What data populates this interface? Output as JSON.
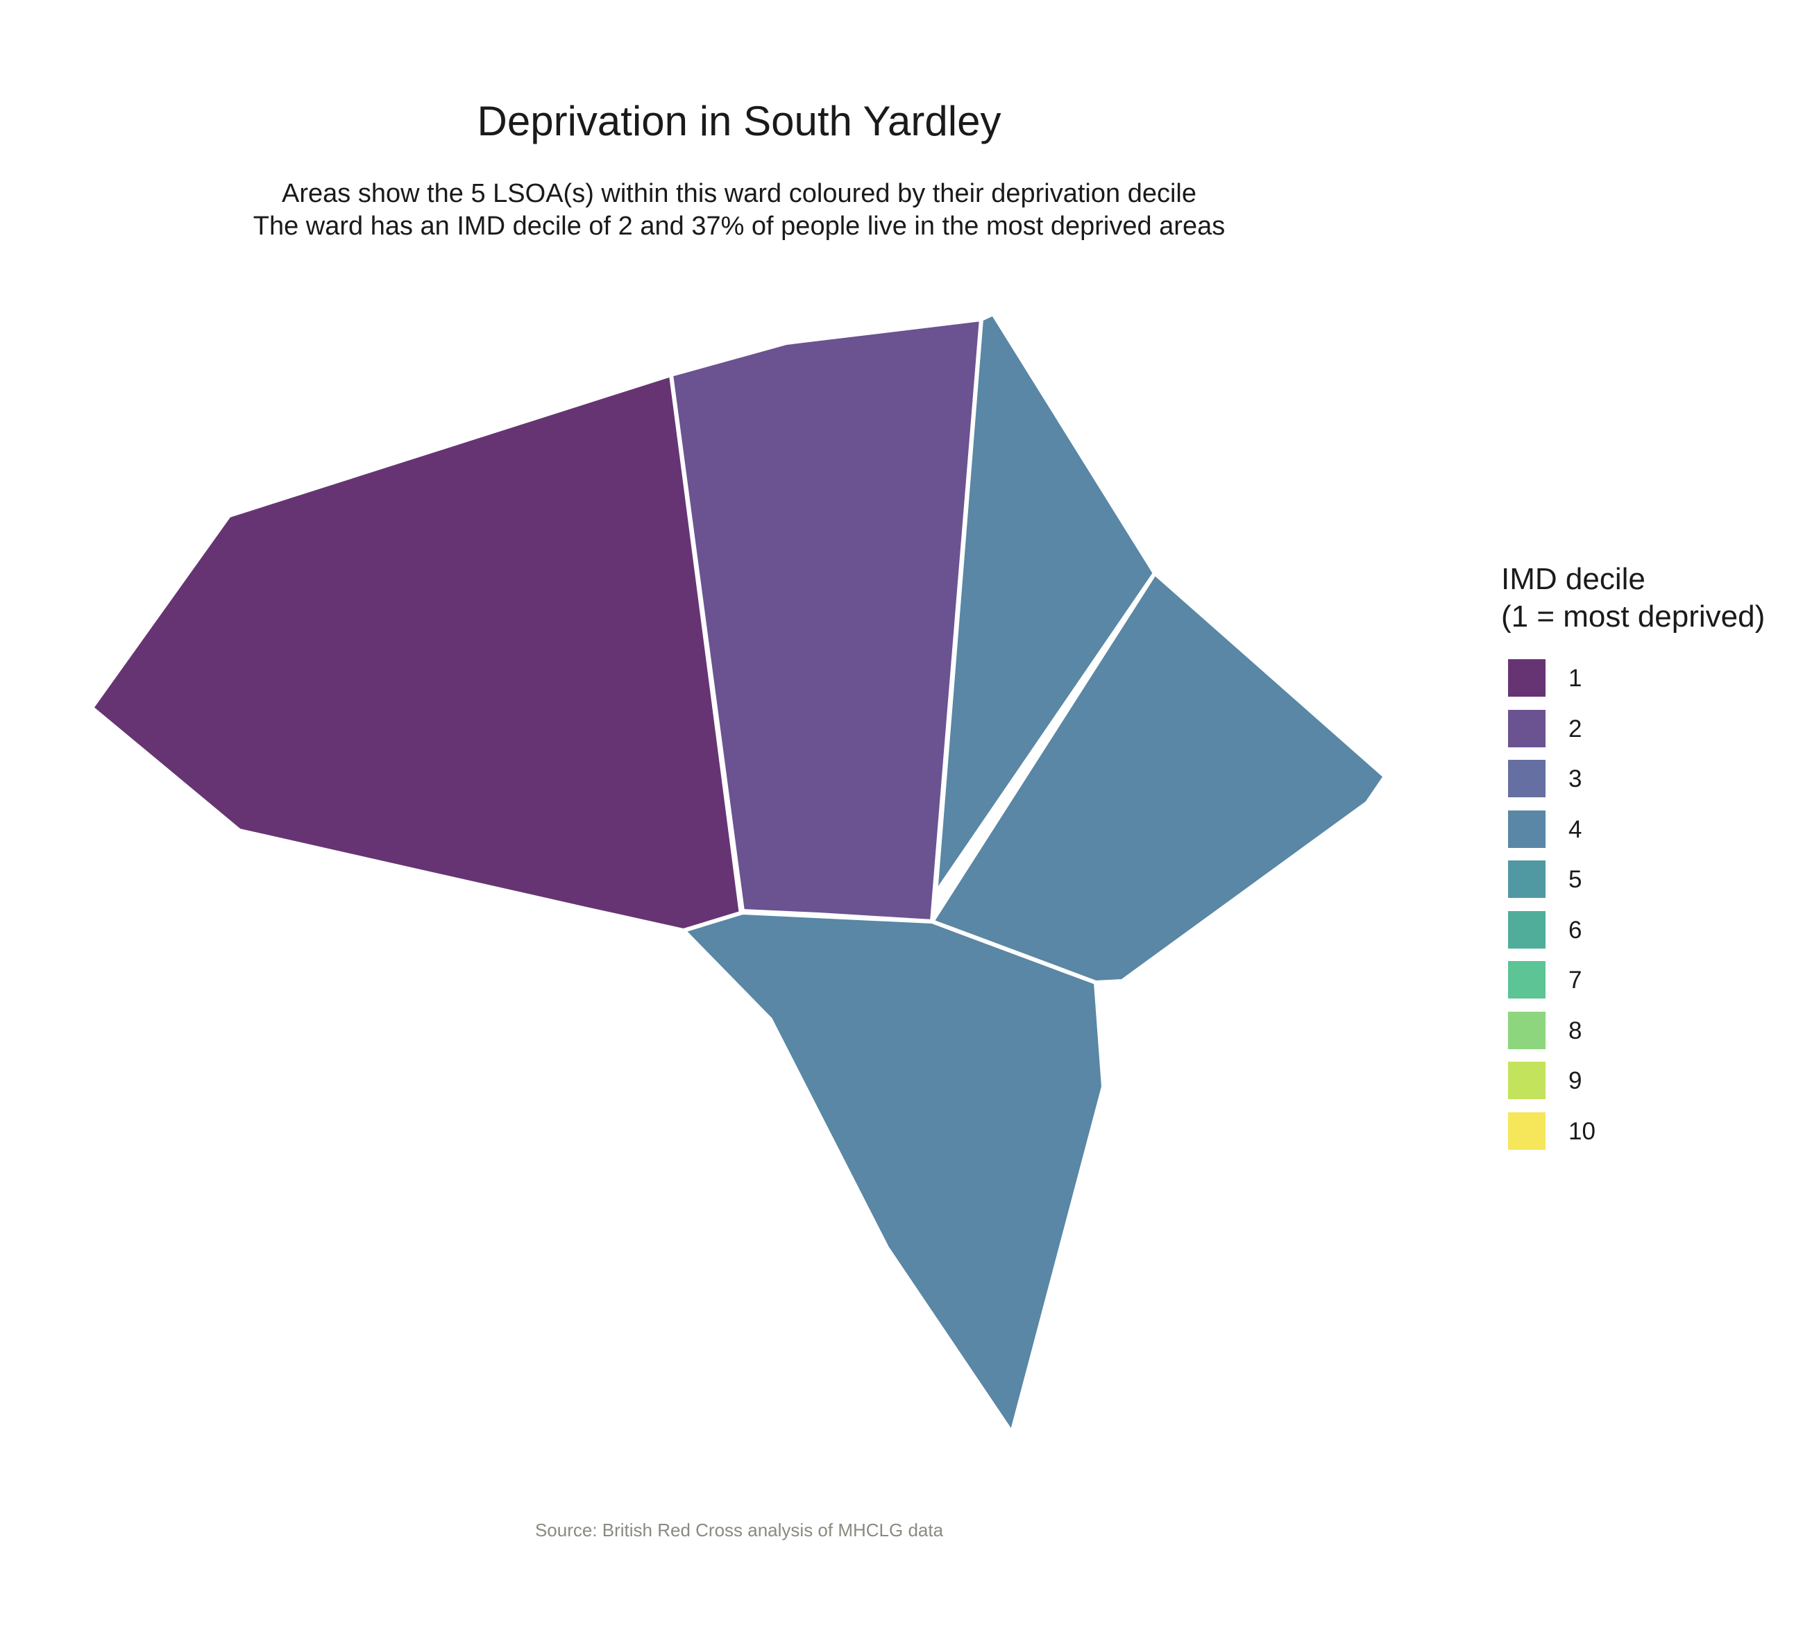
{
  "title": "Deprivation in South Yardley",
  "subtitle_line1": "Areas show the 5 LSOA(s) within this ward coloured by their deprivation decile",
  "subtitle_line2": "The ward has an IMD decile of 2 and 37% of people live in the most deprived areas",
  "caption": "Source: British Red Cross analysis of MHCLG data",
  "legend": {
    "title_line1": "IMD decile",
    "title_line2": "(1 = most deprived)",
    "items": [
      {
        "label": "1",
        "color": "#663473"
      },
      {
        "label": "2",
        "color": "#6b5291"
      },
      {
        "label": "3",
        "color": "#656fa2"
      },
      {
        "label": "4",
        "color": "#5987a5"
      },
      {
        "label": "5",
        "color": "#5199a2"
      },
      {
        "label": "6",
        "color": "#4fad9a"
      },
      {
        "label": "7",
        "color": "#5cc495"
      },
      {
        "label": "8",
        "color": "#8dd67d"
      },
      {
        "label": "9",
        "color": "#c3e35c"
      },
      {
        "label": "10",
        "color": "#f6e65a"
      }
    ]
  },
  "areas": [
    {
      "id": "lsoa-west",
      "decile": 1
    },
    {
      "id": "lsoa-north-central",
      "decile": 2
    },
    {
      "id": "lsoa-north-east",
      "decile": 4
    },
    {
      "id": "lsoa-east",
      "decile": 4
    },
    {
      "id": "lsoa-south",
      "decile": 4
    }
  ],
  "boundary_color": "#ffffff"
}
